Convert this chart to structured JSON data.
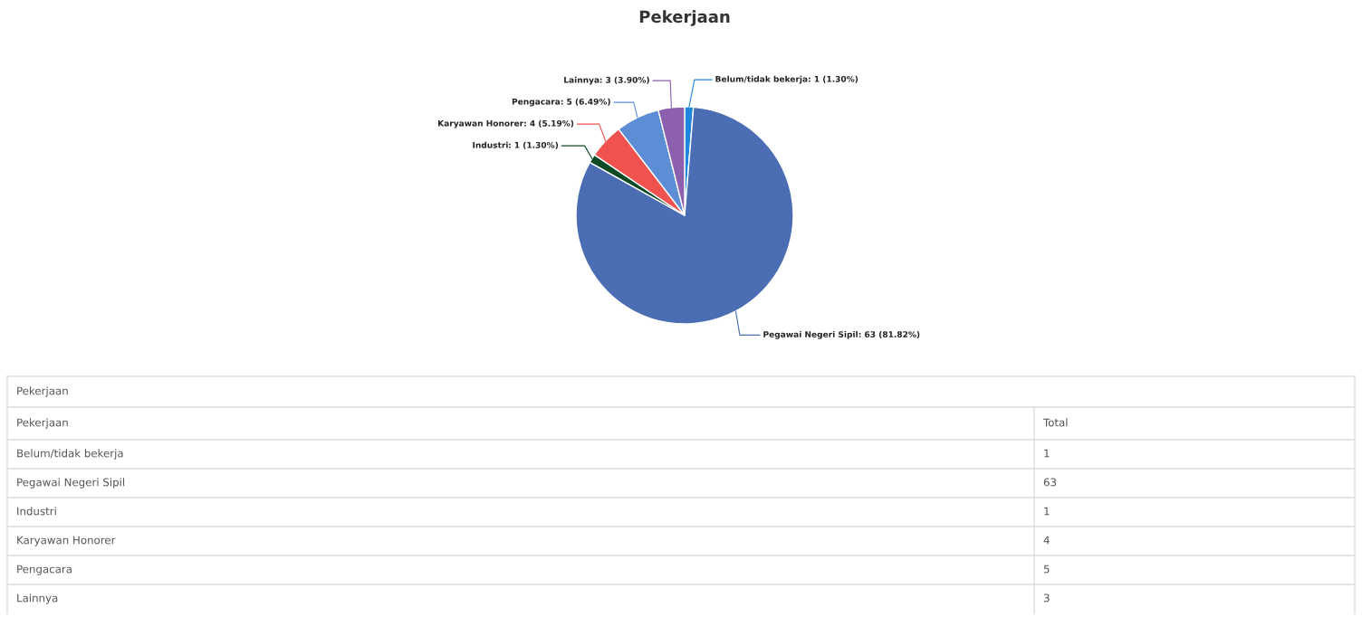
{
  "chart_data": [
    {
      "type": "pie",
      "title": "Pekerjaan",
      "categories": [
        "Belum/tidak bekerja",
        "Pegawai Negeri Sipil",
        "Industri",
        "Karyawan Honorer",
        "Pengacara",
        "Lainnya"
      ],
      "values": [
        1,
        63,
        1,
        4,
        5,
        3
      ],
      "colors": [
        "#1f86e0",
        "#4a6db3",
        "#0e4a26",
        "#f0524f",
        "#5d8dd4",
        "#8c60ad"
      ],
      "value_labels": [
        ": 1 (1.30%)",
        ": 63 (81.82%)",
        ": 1 (1.30%)",
        ": 4 (5.19%)",
        ": 5 (6.49%)",
        ": 3 (3.90%)"
      ]
    },
    {
      "type": "other",
      "annotations": [
        "Pekerjaan",
        "Pekerjaan",
        "Total",
        "Belum/tidak bekerja",
        "1",
        "Pegawai Negeri Sipil",
        "63",
        "Industri",
        "1",
        "Karyawan Honorer",
        "4",
        "Pengacara",
        "5",
        "Lainnya",
        "3"
      ]
    }
  ]
}
